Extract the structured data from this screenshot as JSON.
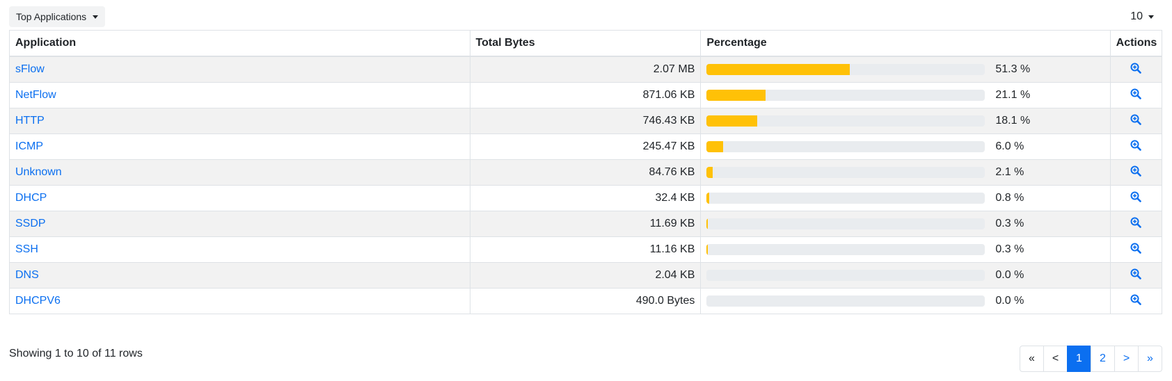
{
  "toolbar": {
    "view_label": "Top Applications",
    "page_size": "10"
  },
  "table": {
    "headers": {
      "application": "Application",
      "total_bytes": "Total Bytes",
      "percentage": "Percentage",
      "actions": "Actions"
    },
    "rows": [
      {
        "application": "sFlow",
        "total_bytes": "2.07 MB",
        "percentage": "51.3 %",
        "pct_value": 51.3
      },
      {
        "application": "NetFlow",
        "total_bytes": "871.06 KB",
        "percentage": "21.1 %",
        "pct_value": 21.1
      },
      {
        "application": "HTTP",
        "total_bytes": "746.43 KB",
        "percentage": "18.1 %",
        "pct_value": 18.1
      },
      {
        "application": "ICMP",
        "total_bytes": "245.47 KB",
        "percentage": "6.0 %",
        "pct_value": 6.0
      },
      {
        "application": "Unknown",
        "total_bytes": "84.76 KB",
        "percentage": "2.1 %",
        "pct_value": 2.1
      },
      {
        "application": "DHCP",
        "total_bytes": "32.4 KB",
        "percentage": "0.8 %",
        "pct_value": 0.8
      },
      {
        "application": "SSDP",
        "total_bytes": "11.69 KB",
        "percentage": "0.3 %",
        "pct_value": 0.3
      },
      {
        "application": "SSH",
        "total_bytes": "11.16 KB",
        "percentage": "0.3 %",
        "pct_value": 0.3
      },
      {
        "application": "DNS",
        "total_bytes": "2.04 KB",
        "percentage": "0.0 %",
        "pct_value": 0.0
      },
      {
        "application": "DHCPV6",
        "total_bytes": "490.0 Bytes",
        "percentage": "0.0 %",
        "pct_value": 0.0
      }
    ]
  },
  "footer": {
    "showing_text": "Showing 1 to 10 of 11 rows"
  },
  "pagination": {
    "first": "«",
    "prev": "<",
    "pages": [
      "1",
      "2"
    ],
    "active_page": "1",
    "next": ">",
    "last": "»"
  },
  "icons": {
    "action": "zoom-in-icon",
    "dropdown": "caret-down-icon"
  },
  "colors": {
    "link": "#0b6ff0",
    "bar_fill": "#ffc107",
    "bar_track": "#e9ecef",
    "active_page": "#0b6ff0"
  }
}
